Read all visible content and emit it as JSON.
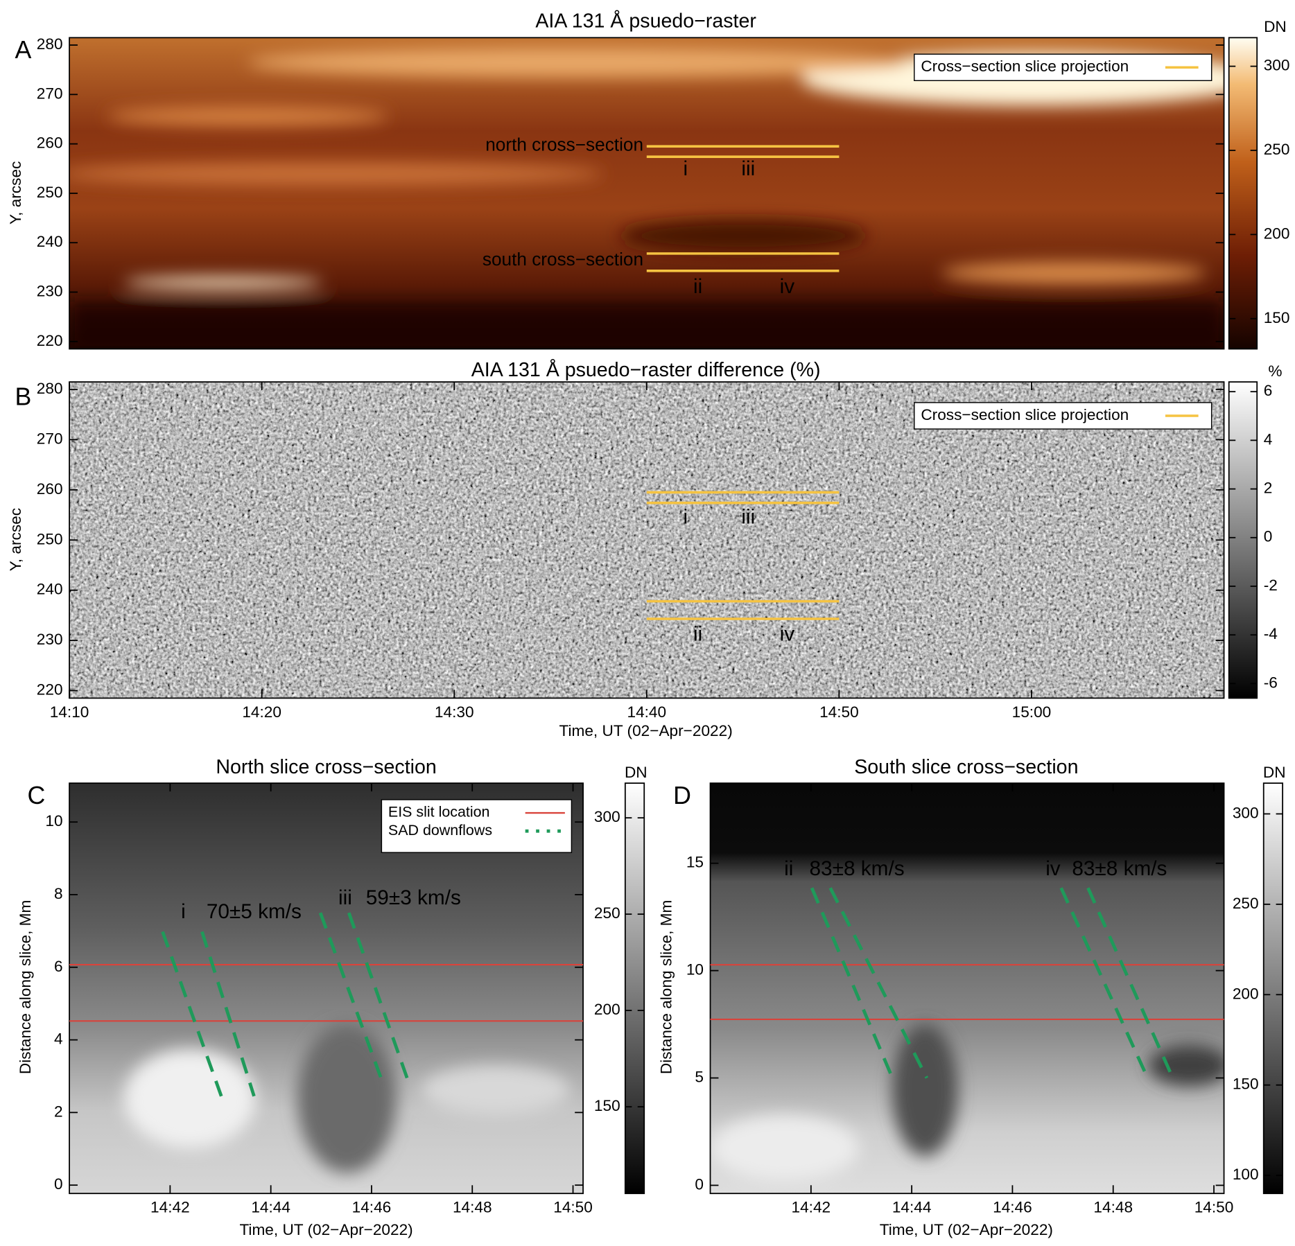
{
  "chart_data": [
    {
      "type": "heatmap",
      "panel_label": "A",
      "title": "AIA 131 Å psuedo−raster",
      "ylabel": "Y, arcsec",
      "colormap": "afmhot",
      "xlim": [
        "14:10",
        "15:10"
      ],
      "ylim": [
        218.5,
        281.5
      ],
      "yticks": [
        220,
        230,
        240,
        250,
        260,
        270,
        280
      ],
      "colorbar_label": "DN",
      "clim": [
        132,
        317
      ],
      "cticks": [
        150,
        200,
        250,
        300
      ],
      "legend": {
        "label": "Cross−section slice projection",
        "color": "#f5c342",
        "loc": "upper right"
      },
      "cross_sections": [
        {
          "name": "north cross−section",
          "x": [
            "14:40",
            "14:50"
          ],
          "y": [
            259.5,
            257.4
          ]
        },
        {
          "name": "south cross−section",
          "x": [
            "14:40",
            "14:50"
          ],
          "y": [
            237.8,
            234.3
          ]
        }
      ],
      "features": [
        "i",
        "iii",
        "ii",
        "iv"
      ],
      "feature_color": "#2a9fd6"
    },
    {
      "type": "heatmap",
      "panel_label": "B",
      "title": "AIA 131 Å psuedo−raster difference (%)",
      "xlabel": "Time, UT (02−Apr−2022)",
      "ylabel": "Y, arcsec",
      "colormap": "gray",
      "xlim": [
        "14:10",
        "15:10"
      ],
      "xticks": [
        "14:10",
        "14:20",
        "14:30",
        "14:40",
        "14:50",
        "15:00"
      ],
      "ylim": [
        218.5,
        281.5
      ],
      "yticks": [
        220,
        230,
        240,
        250,
        260,
        270,
        280
      ],
      "colorbar_label": "%",
      "clim": [
        -6.6,
        6.4
      ],
      "cticks": [
        -6,
        -4,
        -2,
        0,
        2,
        4,
        6
      ],
      "legend": {
        "label": "Cross−section slice projection",
        "color": "#f5c342",
        "loc": "upper right"
      },
      "cross_sections": [
        {
          "x": [
            "14:40",
            "14:50"
          ],
          "y": [
            259.5,
            257.4
          ]
        },
        {
          "x": [
            "14:40",
            "14:50"
          ],
          "y": [
            237.8,
            234.3
          ]
        }
      ],
      "features": [
        "i",
        "iii",
        "ii",
        "iv"
      ],
      "feature_color": "#2a9fd6"
    },
    {
      "type": "heatmap",
      "panel_label": "C",
      "title": "North slice cross−section",
      "xlabel": "Time, UT (02−Apr−2022)",
      "ylabel": "Distance along slice, Mm",
      "colormap": "gray",
      "xlim": [
        "14:40:00",
        "14:50:12"
      ],
      "xticks": [
        "14:42",
        "14:44",
        "14:46",
        "14:48",
        "14:50"
      ],
      "ylim": [
        -0.23,
        11.07
      ],
      "yticks": [
        0,
        2,
        4,
        6,
        8,
        10
      ],
      "colorbar_label": "DN",
      "clim": [
        105,
        318
      ],
      "cticks": [
        150,
        200,
        250,
        300
      ],
      "legend": {
        "loc": "upper right",
        "entries": [
          {
            "name": "EIS slit location",
            "color": "#d9433b",
            "style": "solid"
          },
          {
            "name": "SAD downflows",
            "color": "#1f9a5a",
            "style": "dotted"
          }
        ]
      },
      "slit_color": "#d9433b",
      "slit_y": [
        6.07,
        4.52
      ],
      "downflow_color": "#1f9a5a",
      "name_color": "#c23a7e",
      "speed_color": "#f5c342",
      "downflows": [
        {
          "name": "i",
          "speed": "70±5 km/s",
          "lines": [
            {
              "x": [
                "14:41:51",
                "14:43:01"
              ],
              "y": [
                6.98,
                2.45
              ]
            },
            {
              "x": [
                "14:42:38",
                "14:43:40"
              ],
              "y": [
                6.98,
                2.45
              ]
            }
          ]
        },
        {
          "name": "iii",
          "speed": "59±3 km/s",
          "lines": [
            {
              "x": [
                "14:44:59",
                "14:46:13"
              ],
              "y": [
                7.5,
                2.84
              ]
            },
            {
              "x": [
                "14:45:33",
                "14:46:44"
              ],
              "y": [
                7.5,
                2.84
              ]
            }
          ]
        }
      ]
    },
    {
      "type": "heatmap",
      "panel_label": "D",
      "title": "South slice cross−section",
      "xlabel": "Time, UT (02−Apr−2022)",
      "ylabel": "Distance along slice, Mm",
      "colormap": "gray",
      "xlim": [
        "14:40:00",
        "14:50:12"
      ],
      "xticks": [
        "14:42",
        "14:44",
        "14:46",
        "14:48",
        "14:50"
      ],
      "ylim": [
        -0.38,
        18.73
      ],
      "yticks": [
        0,
        5,
        10,
        15
      ],
      "colorbar_label": "DN",
      "clim": [
        90,
        317
      ],
      "cticks": [
        100,
        150,
        200,
        250,
        300
      ],
      "slit_color": "#d9433b",
      "slit_y": [
        10.27,
        7.73
      ],
      "downflow_color": "#1f9a5a",
      "name_color": "#c23a7e",
      "speed_color": "#f5c342",
      "downflows": [
        {
          "name": "ii",
          "speed": "83±8 km/s",
          "lines": [
            {
              "x": [
                "14:42:01",
                "14:43:37"
              ],
              "y": [
                13.85,
                5.0
              ]
            },
            {
              "x": [
                "14:42:23",
                "14:44:18"
              ],
              "y": [
                13.85,
                5.0
              ]
            }
          ]
        },
        {
          "name": "iv",
          "speed": "83±8 km/s",
          "lines": [
            {
              "x": [
                "14:46:58",
                "14:48:41"
              ],
              "y": [
                13.85,
                5.0
              ]
            },
            {
              "x": [
                "14:47:30",
                "14:49:11"
              ],
              "y": [
                13.85,
                5.0
              ]
            }
          ]
        }
      ]
    }
  ]
}
